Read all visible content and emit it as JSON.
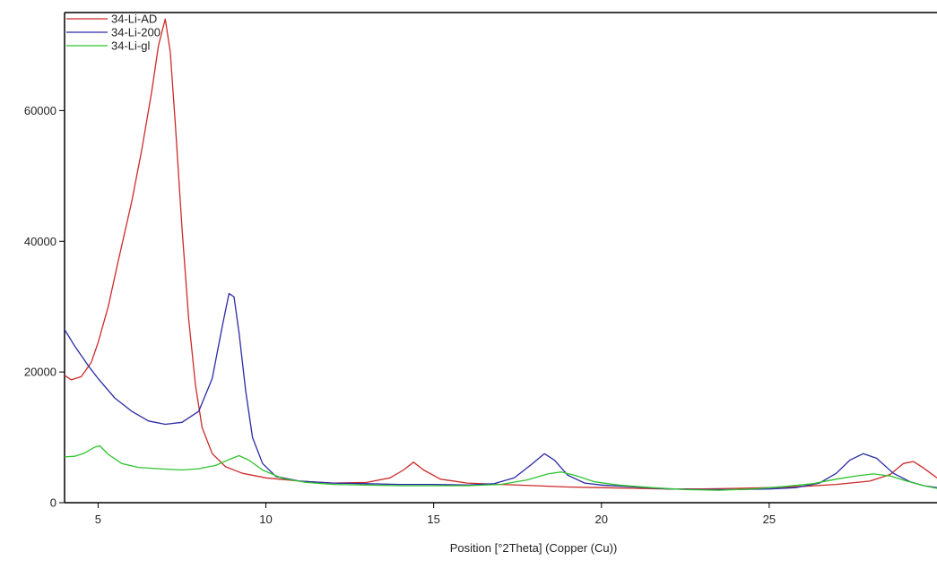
{
  "chart_data": {
    "type": "line",
    "title": "",
    "xlabel": "Position [°2Theta] (Copper (Cu))",
    "ylabel": "",
    "xlim": [
      4,
      30
    ],
    "ylim": [
      0,
      75000
    ],
    "x_ticks": [
      5,
      10,
      15,
      20,
      25
    ],
    "y_ticks": [
      0,
      20000,
      40000,
      60000
    ],
    "legend_position": "top-left",
    "grid": false,
    "series": [
      {
        "name": "34-Li-AD",
        "color": "#cc2a2a",
        "points": [
          [
            4.0,
            19500
          ],
          [
            4.2,
            18800
          ],
          [
            4.5,
            19300
          ],
          [
            4.8,
            21500
          ],
          [
            5.0,
            24500
          ],
          [
            5.3,
            30000
          ],
          [
            5.6,
            37000
          ],
          [
            6.0,
            46000
          ],
          [
            6.3,
            54000
          ],
          [
            6.6,
            63000
          ],
          [
            6.8,
            70000
          ],
          [
            7.0,
            74000
          ],
          [
            7.15,
            69000
          ],
          [
            7.3,
            58000
          ],
          [
            7.5,
            42000
          ],
          [
            7.7,
            28000
          ],
          [
            7.9,
            18000
          ],
          [
            8.1,
            11500
          ],
          [
            8.4,
            7500
          ],
          [
            8.8,
            5500
          ],
          [
            9.3,
            4500
          ],
          [
            10.0,
            3800
          ],
          [
            11.0,
            3300
          ],
          [
            12.0,
            3000
          ],
          [
            13.0,
            3100
          ],
          [
            13.7,
            3800
          ],
          [
            14.1,
            5000
          ],
          [
            14.4,
            6200
          ],
          [
            14.7,
            5000
          ],
          [
            15.2,
            3600
          ],
          [
            16.0,
            3000
          ],
          [
            17.0,
            2800
          ],
          [
            18.0,
            2600
          ],
          [
            19.0,
            2400
          ],
          [
            20.0,
            2300
          ],
          [
            21.0,
            2200
          ],
          [
            22.0,
            2100
          ],
          [
            23.0,
            2100
          ],
          [
            24.0,
            2200
          ],
          [
            25.0,
            2300
          ],
          [
            26.0,
            2500
          ],
          [
            27.0,
            2800
          ],
          [
            28.0,
            3300
          ],
          [
            28.6,
            4300
          ],
          [
            29.0,
            6000
          ],
          [
            29.3,
            6300
          ],
          [
            29.6,
            5300
          ],
          [
            30.0,
            3800
          ]
        ]
      },
      {
        "name": "34-Li-200",
        "color": "#2a2aa6",
        "points": [
          [
            4.0,
            26500
          ],
          [
            4.3,
            24000
          ],
          [
            4.7,
            21000
          ],
          [
            5.0,
            19000
          ],
          [
            5.5,
            16000
          ],
          [
            6.0,
            14000
          ],
          [
            6.5,
            12500
          ],
          [
            7.0,
            12000
          ],
          [
            7.5,
            12300
          ],
          [
            8.0,
            14000
          ],
          [
            8.4,
            19000
          ],
          [
            8.7,
            27000
          ],
          [
            8.9,
            32000
          ],
          [
            9.05,
            31500
          ],
          [
            9.2,
            26000
          ],
          [
            9.4,
            17000
          ],
          [
            9.6,
            10000
          ],
          [
            9.9,
            6000
          ],
          [
            10.3,
            4000
          ],
          [
            11.0,
            3300
          ],
          [
            12.0,
            3000
          ],
          [
            13.0,
            2900
          ],
          [
            14.0,
            2800
          ],
          [
            15.0,
            2800
          ],
          [
            16.0,
            2700
          ],
          [
            16.8,
            2900
          ],
          [
            17.4,
            3800
          ],
          [
            17.9,
            5800
          ],
          [
            18.3,
            7500
          ],
          [
            18.6,
            6500
          ],
          [
            19.0,
            4200
          ],
          [
            19.5,
            3000
          ],
          [
            20.0,
            2700
          ],
          [
            21.0,
            2400
          ],
          [
            22.0,
            2100
          ],
          [
            23.0,
            2000
          ],
          [
            24.0,
            2000
          ],
          [
            25.0,
            2100
          ],
          [
            25.8,
            2300
          ],
          [
            26.5,
            3000
          ],
          [
            27.0,
            4500
          ],
          [
            27.4,
            6500
          ],
          [
            27.8,
            7500
          ],
          [
            28.2,
            6800
          ],
          [
            28.7,
            4500
          ],
          [
            29.2,
            3200
          ],
          [
            29.6,
            2600
          ],
          [
            30.0,
            2300
          ]
        ]
      },
      {
        "name": "34-Li-gl",
        "color": "#2ec42e",
        "points": [
          [
            4.0,
            7000
          ],
          [
            4.3,
            7100
          ],
          [
            4.6,
            7600
          ],
          [
            4.9,
            8500
          ],
          [
            5.05,
            8700
          ],
          [
            5.3,
            7400
          ],
          [
            5.7,
            6000
          ],
          [
            6.2,
            5400
          ],
          [
            6.8,
            5200
          ],
          [
            7.5,
            5000
          ],
          [
            8.0,
            5200
          ],
          [
            8.5,
            5700
          ],
          [
            8.9,
            6600
          ],
          [
            9.2,
            7200
          ],
          [
            9.5,
            6500
          ],
          [
            9.9,
            5000
          ],
          [
            10.5,
            3700
          ],
          [
            11.2,
            3100
          ],
          [
            12.0,
            2800
          ],
          [
            13.0,
            2700
          ],
          [
            14.0,
            2600
          ],
          [
            15.0,
            2600
          ],
          [
            16.0,
            2600
          ],
          [
            17.0,
            2800
          ],
          [
            17.8,
            3500
          ],
          [
            18.4,
            4400
          ],
          [
            18.8,
            4700
          ],
          [
            19.2,
            4200
          ],
          [
            19.8,
            3200
          ],
          [
            20.5,
            2700
          ],
          [
            21.5,
            2300
          ],
          [
            22.5,
            2000
          ],
          [
            23.5,
            1900
          ],
          [
            24.5,
            2100
          ],
          [
            25.5,
            2500
          ],
          [
            26.3,
            2900
          ],
          [
            27.0,
            3600
          ],
          [
            27.6,
            4100
          ],
          [
            28.1,
            4400
          ],
          [
            28.6,
            4100
          ],
          [
            29.1,
            3300
          ],
          [
            29.6,
            2600
          ],
          [
            30.0,
            2200
          ]
        ]
      }
    ]
  }
}
